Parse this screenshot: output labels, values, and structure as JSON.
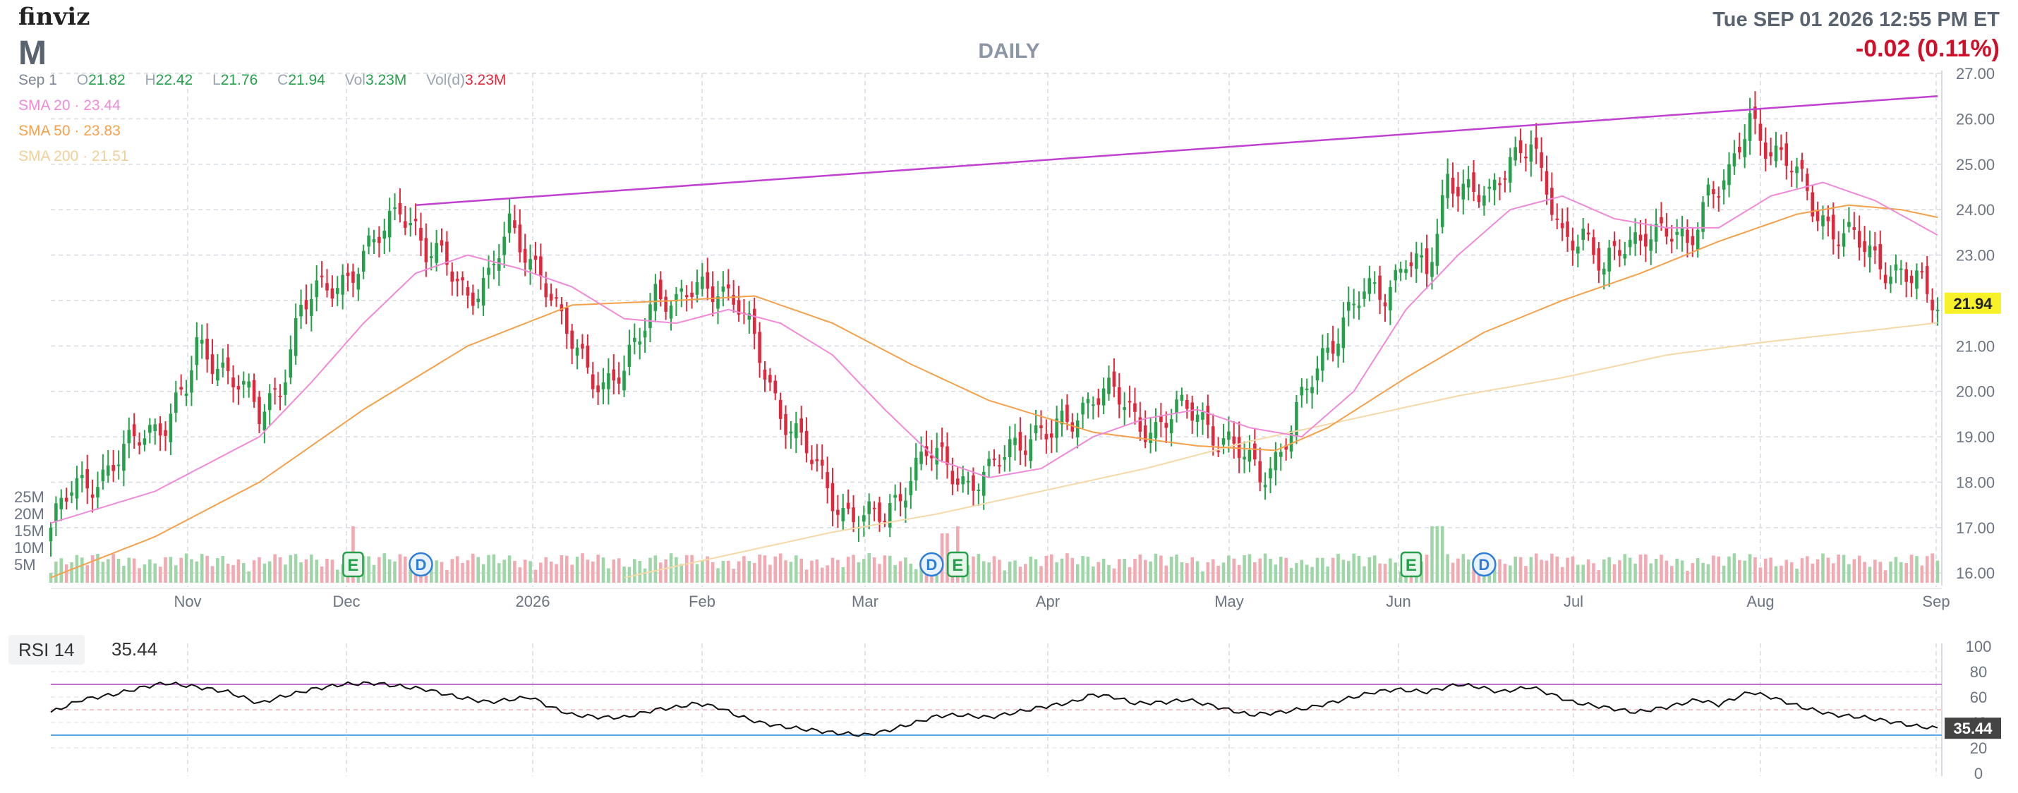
{
  "header": {
    "brand": "finviz",
    "ticker": "M",
    "timeframe": "DAILY",
    "datetime": "Tue SEP 01 2026 12:55 PM ET",
    "change": "-0.02 (0.11%)",
    "ohlc": {
      "date": "Sep 1",
      "o_label": "O",
      "o": "21.82",
      "h_label": "H",
      "h": "22.42",
      "l_label": "L",
      "l": "21.76",
      "c_label": "C",
      "c": "21.94",
      "vol_label": "Vol",
      "vol": "3.23M",
      "vold_label": "Vol(d)",
      "vold": "3.23M"
    },
    "sma": [
      {
        "label": "SMA 20",
        "value": "23.44",
        "color": "#f08ad8"
      },
      {
        "label": "SMA 50",
        "value": "23.83",
        "color": "#f5a04a"
      },
      {
        "label": "SMA 200",
        "value": "21.51",
        "color": "#f5d9a8"
      }
    ]
  },
  "colors": {
    "up": "#26a04a",
    "down": "#e0283c",
    "vol_up": "#9fd6a8",
    "vol_down": "#f2a9b1",
    "trendline": "#c040d0",
    "rsi_line": "#111111",
    "rsi_upper": "#c070d0",
    "rsi_lower": "#5ba6e6",
    "last_price_bg": "#f7f12a",
    "rsi_badge_bg": "#444444",
    "change_color": "#d0102a"
  },
  "chart_data": {
    "type": "candlestick",
    "y_ticks": [
      "27.00",
      "26.00",
      "25.00",
      "24.00",
      "23.00",
      "22.00",
      "21.00",
      "20.00",
      "19.00",
      "18.00",
      "17.00",
      "16.00"
    ],
    "ylim": [
      15.6,
      27.0
    ],
    "x_ticks": [
      "Nov",
      "Dec",
      "2026",
      "Feb",
      "Mar",
      "Apr",
      "May",
      "Jun",
      "Jul",
      "Aug",
      "Sep"
    ],
    "vol_ticks": [
      "25M",
      "20M",
      "15M",
      "10M",
      "5M"
    ],
    "last_price": "21.94",
    "close_points": [
      [
        0,
        17.0
      ],
      [
        4,
        17.8
      ],
      [
        10,
        18.2
      ],
      [
        14,
        18.6
      ],
      [
        18,
        19.1
      ],
      [
        22,
        19.4
      ],
      [
        26,
        20.0
      ],
      [
        28,
        20.9
      ],
      [
        32,
        20.7
      ],
      [
        36,
        20.2
      ],
      [
        40,
        19.4
      ],
      [
        44,
        20.2
      ],
      [
        48,
        21.8
      ],
      [
        52,
        22.2
      ],
      [
        56,
        22.5
      ],
      [
        60,
        22.9
      ],
      [
        64,
        23.5
      ],
      [
        67,
        24.2
      ],
      [
        70,
        23.6
      ],
      [
        72,
        23.0
      ],
      [
        76,
        22.8
      ],
      [
        80,
        22.2
      ],
      [
        84,
        22.4
      ],
      [
        88,
        23.6
      ],
      [
        91,
        23.2
      ],
      [
        94,
        22.6
      ],
      [
        98,
        21.4
      ],
      [
        102,
        20.8
      ],
      [
        106,
        20.1
      ],
      [
        110,
        20.3
      ],
      [
        112,
        21.0
      ],
      [
        116,
        22.3
      ],
      [
        120,
        21.8
      ],
      [
        124,
        22.3
      ],
      [
        128,
        22.4
      ],
      [
        132,
        21.8
      ],
      [
        136,
        20.8
      ],
      [
        140,
        19.6
      ],
      [
        144,
        18.8
      ],
      [
        148,
        18.1
      ],
      [
        152,
        17.4
      ],
      [
        156,
        17.1
      ],
      [
        160,
        17.3
      ],
      [
        164,
        18.0
      ],
      [
        168,
        18.6
      ],
      [
        172,
        18.4
      ],
      [
        176,
        18.0
      ],
      [
        180,
        18.1
      ],
      [
        184,
        18.8
      ],
      [
        188,
        19.1
      ],
      [
        192,
        19.0
      ],
      [
        196,
        19.4
      ],
      [
        200,
        20.0
      ],
      [
        204,
        19.9
      ],
      [
        208,
        19.4
      ],
      [
        212,
        19.2
      ],
      [
        216,
        19.5
      ],
      [
        220,
        19.6
      ],
      [
        224,
        19.0
      ],
      [
        228,
        18.6
      ],
      [
        232,
        18.2
      ],
      [
        236,
        18.7
      ],
      [
        240,
        19.7
      ],
      [
        244,
        20.8
      ],
      [
        248,
        21.6
      ],
      [
        252,
        22.1
      ],
      [
        256,
        22.2
      ],
      [
        260,
        23.0
      ],
      [
        264,
        22.5
      ],
      [
        266,
        23.4
      ],
      [
        268,
        24.8
      ],
      [
        272,
        24.5
      ],
      [
        276,
        24.1
      ],
      [
        280,
        25.2
      ],
      [
        284,
        25.6
      ],
      [
        286,
        24.6
      ],
      [
        290,
        23.3
      ],
      [
        294,
        23.6
      ],
      [
        298,
        22.6
      ],
      [
        302,
        23.2
      ],
      [
        306,
        23.6
      ],
      [
        310,
        23.4
      ],
      [
        314,
        23.2
      ],
      [
        318,
        24.5
      ],
      [
        322,
        24.6
      ],
      [
        326,
        26.0
      ],
      [
        330,
        25.4
      ],
      [
        334,
        24.9
      ],
      [
        338,
        24.1
      ],
      [
        342,
        23.6
      ],
      [
        346,
        23.3
      ],
      [
        350,
        22.9
      ],
      [
        354,
        22.7
      ],
      [
        358,
        22.4
      ],
      [
        360,
        22.0
      ],
      [
        362,
        21.94
      ]
    ],
    "sma20_points": [
      [
        0,
        17.1
      ],
      [
        20,
        17.8
      ],
      [
        30,
        18.4
      ],
      [
        40,
        19.0
      ],
      [
        50,
        20.2
      ],
      [
        60,
        21.5
      ],
      [
        70,
        22.6
      ],
      [
        80,
        23.0
      ],
      [
        90,
        22.7
      ],
      [
        100,
        22.3
      ],
      [
        110,
        21.6
      ],
      [
        120,
        21.5
      ],
      [
        130,
        21.8
      ],
      [
        140,
        21.5
      ],
      [
        150,
        20.8
      ],
      [
        160,
        19.6
      ],
      [
        170,
        18.5
      ],
      [
        180,
        18.1
      ],
      [
        190,
        18.3
      ],
      [
        200,
        19.0
      ],
      [
        210,
        19.4
      ],
      [
        220,
        19.6
      ],
      [
        230,
        19.2
      ],
      [
        240,
        19.0
      ],
      [
        250,
        20.0
      ],
      [
        260,
        21.8
      ],
      [
        270,
        23.0
      ],
      [
        280,
        24.0
      ],
      [
        290,
        24.3
      ],
      [
        300,
        23.8
      ],
      [
        310,
        23.6
      ],
      [
        320,
        23.6
      ],
      [
        330,
        24.3
      ],
      [
        340,
        24.6
      ],
      [
        350,
        24.2
      ],
      [
        362,
        23.44
      ]
    ],
    "sma50_points": [
      [
        0,
        15.9
      ],
      [
        20,
        16.8
      ],
      [
        40,
        18.0
      ],
      [
        60,
        19.6
      ],
      [
        80,
        21.0
      ],
      [
        100,
        21.9
      ],
      [
        120,
        22.0
      ],
      [
        135,
        22.1
      ],
      [
        150,
        21.5
      ],
      [
        165,
        20.6
      ],
      [
        180,
        19.8
      ],
      [
        200,
        19.1
      ],
      [
        220,
        18.8
      ],
      [
        235,
        18.7
      ],
      [
        245,
        19.2
      ],
      [
        260,
        20.3
      ],
      [
        275,
        21.3
      ],
      [
        290,
        22.0
      ],
      [
        305,
        22.6
      ],
      [
        320,
        23.3
      ],
      [
        335,
        23.9
      ],
      [
        345,
        24.1
      ],
      [
        355,
        24.0
      ],
      [
        362,
        23.83
      ]
    ],
    "sma200_points": [
      [
        110,
        15.9
      ],
      [
        130,
        16.4
      ],
      [
        150,
        16.9
      ],
      [
        170,
        17.3
      ],
      [
        190,
        17.8
      ],
      [
        210,
        18.3
      ],
      [
        230,
        18.9
      ],
      [
        250,
        19.4
      ],
      [
        270,
        19.9
      ],
      [
        290,
        20.3
      ],
      [
        310,
        20.8
      ],
      [
        330,
        21.1
      ],
      [
        350,
        21.35
      ],
      [
        362,
        21.51
      ]
    ],
    "trendline": [
      [
        70,
        24.1
      ],
      [
        362,
        26.5
      ]
    ],
    "events": [
      {
        "type": "E",
        "index": 58
      },
      {
        "type": "D",
        "index": 71
      },
      {
        "type": "D",
        "index": 169
      },
      {
        "type": "E",
        "index": 174
      },
      {
        "type": "E",
        "index": 261
      },
      {
        "type": "D",
        "index": 275
      }
    ],
    "rsi": {
      "label": "RSI 14",
      "value": "35.44",
      "y_ticks": [
        "100",
        "80",
        "60",
        "40",
        "20",
        "0"
      ],
      "ylim": [
        0,
        100
      ],
      "upper": 70,
      "lower": 30,
      "points": [
        [
          0,
          48
        ],
        [
          6,
          58
        ],
        [
          12,
          62
        ],
        [
          18,
          68
        ],
        [
          22,
          71
        ],
        [
          28,
          68
        ],
        [
          34,
          64
        ],
        [
          40,
          55
        ],
        [
          44,
          60
        ],
        [
          50,
          66
        ],
        [
          56,
          70
        ],
        [
          62,
          71
        ],
        [
          68,
          68
        ],
        [
          72,
          66
        ],
        [
          78,
          60
        ],
        [
          84,
          56
        ],
        [
          88,
          58
        ],
        [
          92,
          60
        ],
        [
          96,
          52
        ],
        [
          100,
          46
        ],
        [
          106,
          44
        ],
        [
          110,
          44
        ],
        [
          116,
          50
        ],
        [
          120,
          52
        ],
        [
          124,
          55
        ],
        [
          128,
          52
        ],
        [
          132,
          45
        ],
        [
          136,
          40
        ],
        [
          140,
          37
        ],
        [
          146,
          34
        ],
        [
          150,
          32
        ],
        [
          156,
          30
        ],
        [
          160,
          33
        ],
        [
          166,
          40
        ],
        [
          170,
          45
        ],
        [
          174,
          46
        ],
        [
          180,
          44
        ],
        [
          184,
          47
        ],
        [
          190,
          52
        ],
        [
          196,
          56
        ],
        [
          200,
          62
        ],
        [
          204,
          60
        ],
        [
          208,
          55
        ],
        [
          214,
          56
        ],
        [
          218,
          58
        ],
        [
          224,
          52
        ],
        [
          230,
          46
        ],
        [
          236,
          48
        ],
        [
          242,
          52
        ],
        [
          248,
          58
        ],
        [
          254,
          64
        ],
        [
          258,
          66
        ],
        [
          264,
          64
        ],
        [
          270,
          70
        ],
        [
          274,
          68
        ],
        [
          278,
          64
        ],
        [
          284,
          68
        ],
        [
          288,
          62
        ],
        [
          292,
          56
        ],
        [
          298,
          52
        ],
        [
          304,
          48
        ],
        [
          310,
          52
        ],
        [
          316,
          58
        ],
        [
          320,
          54
        ],
        [
          326,
          64
        ],
        [
          330,
          60
        ],
        [
          336,
          52
        ],
        [
          342,
          46
        ],
        [
          348,
          44
        ],
        [
          354,
          40
        ],
        [
          358,
          37
        ],
        [
          362,
          35.4
        ]
      ]
    }
  }
}
